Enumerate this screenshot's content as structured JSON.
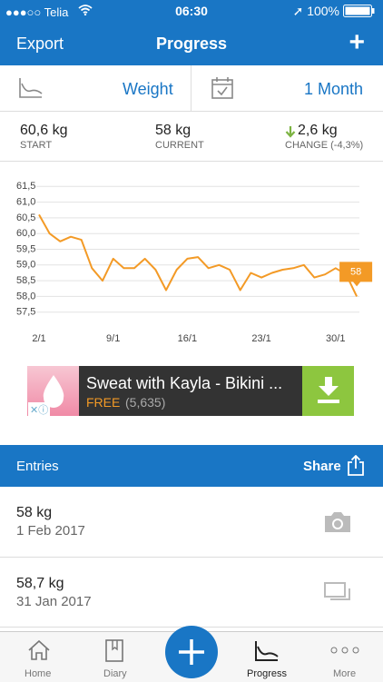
{
  "status_bar": {
    "carrier": "Telia",
    "time": "06:30",
    "battery": "100%"
  },
  "nav": {
    "left": "Export",
    "title": "Progress",
    "right": "+"
  },
  "selector": {
    "metric": "Weight",
    "period": "1 Month"
  },
  "stats": [
    {
      "value": "60,6 kg",
      "label": "START"
    },
    {
      "value": "58 kg",
      "label": "CURRENT"
    },
    {
      "value": "2,6 kg",
      "label": "CHANGE (-4,3%)"
    }
  ],
  "chart_data": {
    "type": "line",
    "categories": [
      "2/1",
      null,
      null,
      null,
      null,
      null,
      null,
      "9/1",
      null,
      null,
      null,
      null,
      null,
      null,
      "16/1",
      null,
      null,
      null,
      null,
      null,
      null,
      "23/1",
      null,
      null,
      null,
      null,
      null,
      null,
      "30/1",
      null,
      null
    ],
    "values": [
      60.6,
      60.0,
      59.75,
      59.9,
      59.8,
      58.9,
      58.5,
      59.2,
      58.9,
      58.9,
      59.2,
      58.85,
      58.2,
      58.85,
      59.2,
      59.25,
      58.9,
      59.0,
      58.85,
      58.2,
      58.75,
      58.6,
      58.75,
      58.85,
      58.9,
      59.0,
      58.6,
      58.7,
      58.9,
      58.7,
      58
    ],
    "color": "#f39a26",
    "ylim": [
      57,
      62
    ],
    "yticks": [
      {
        "value": 57.5,
        "label": "57,5"
      },
      {
        "value": 58,
        "label": "58,0"
      },
      {
        "value": 58.5,
        "label": "58,5"
      },
      {
        "value": 59,
        "label": "59,0"
      },
      {
        "value": 59.5,
        "label": "59,5"
      },
      {
        "value": 60,
        "label": "60,0"
      },
      {
        "value": 60.5,
        "label": "60,5"
      },
      {
        "value": 61,
        "label": "61,0"
      },
      {
        "value": 61.5,
        "label": "61,5"
      }
    ],
    "grid": true
  },
  "ad": {
    "title": "Sweat with Kayla - Bikini ...",
    "price": "FREE",
    "ratings": "(5,635)"
  },
  "entries": {
    "title": "Entries",
    "action": "Share",
    "rows": [
      {
        "weight": "58 kg",
        "date": "1 Feb 2017"
      },
      {
        "weight": "58,7 kg",
        "date": "31 Jan 2017"
      }
    ]
  },
  "tabs": [
    "Home",
    "Diary",
    "Progress",
    "More"
  ]
}
